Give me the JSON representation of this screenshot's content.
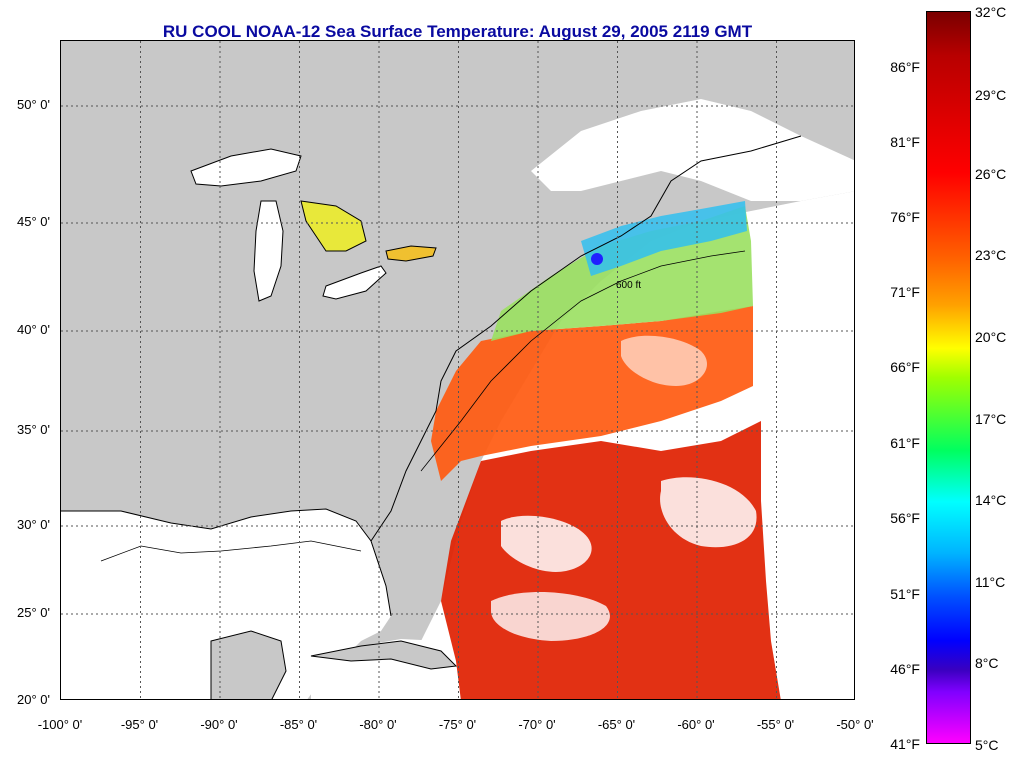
{
  "title": "RU COOL  NOAA-12  Sea Surface Temperature:  August 29, 2005 2119 GMT",
  "map": {
    "lat_labels": [
      "50° 0'",
      "45° 0'",
      "40° 0'",
      "35° 0'",
      "30° 0'",
      "25° 0'",
      "20° 0'"
    ],
    "lon_labels": [
      "-100° 0'",
      "-95° 0'",
      "-90° 0'",
      "-85° 0'",
      "-80° 0'",
      "-75° 0'",
      "-70° 0'",
      "-65° 0'",
      "-60° 0'",
      "-55° 0'",
      "-50° 0'"
    ],
    "isobath_label": "600 ft",
    "colors": {
      "land": "#c8c8c8",
      "ocean_nodata": "#ffffff",
      "grid": "#555555"
    }
  },
  "colorbar": {
    "fahrenheit": [
      "86°F",
      "81°F",
      "76°F",
      "71°F",
      "66°F",
      "61°F",
      "56°F",
      "51°F",
      "46°F",
      "41°F"
    ],
    "celsius": [
      "32°C",
      "29°C",
      "26°C",
      "23°C",
      "20°C",
      "17°C",
      "14°C",
      "11°C",
      "8°C",
      "5°C"
    ]
  }
}
